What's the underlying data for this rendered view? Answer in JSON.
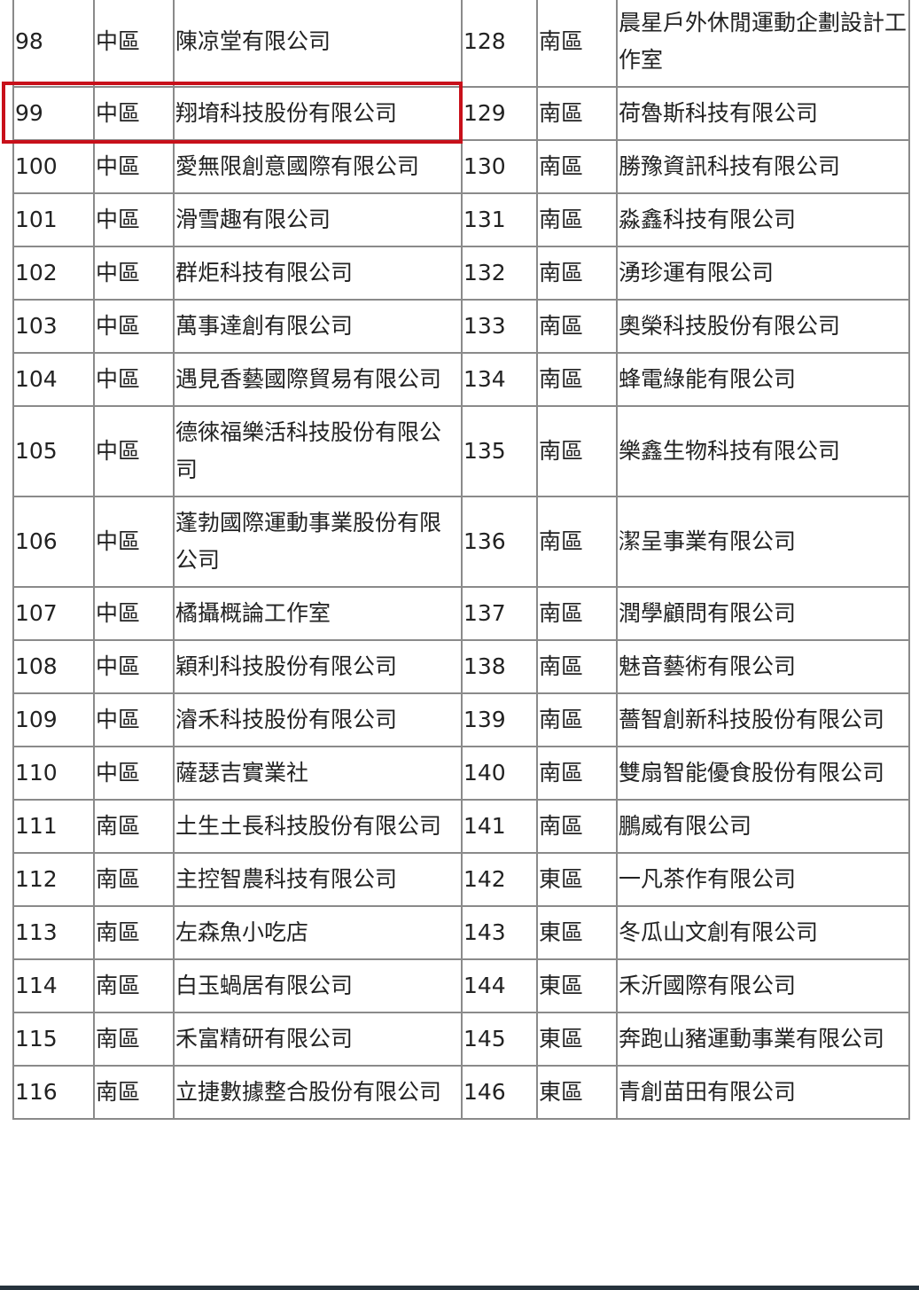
{
  "rows": [
    [
      "98",
      "中區",
      "陳凉堂有限公司",
      "128",
      "南區",
      "晨星戶外休閒運動企劃設計工作室"
    ],
    [
      "99",
      "中區",
      "翔堉科技股份有限公司",
      "129",
      "南區",
      "荷魯斯科技有限公司"
    ],
    [
      "100",
      "中區",
      "愛無限創意國際有限公司",
      "130",
      "南區",
      "勝豫資訊科技有限公司"
    ],
    [
      "101",
      "中區",
      "滑雪趣有限公司",
      "131",
      "南區",
      "淼鑫科技有限公司"
    ],
    [
      "102",
      "中區",
      "群炬科技有限公司",
      "132",
      "南區",
      "湧珍運有限公司"
    ],
    [
      "103",
      "中區",
      "萬事達創有限公司",
      "133",
      "南區",
      "奧榮科技股份有限公司"
    ],
    [
      "104",
      "中區",
      "遇見香藝國際貿易有限公司",
      "134",
      "南區",
      "蜂電綠能有限公司"
    ],
    [
      "105",
      "中區",
      "德徠福樂活科技股份有限公司",
      "135",
      "南區",
      "樂鑫生物科技有限公司"
    ],
    [
      "106",
      "中區",
      "蓬勃國際運動事業股份有限公司",
      "136",
      "南區",
      "潔呈事業有限公司"
    ],
    [
      "107",
      "中區",
      "橘攝概論工作室",
      "137",
      "南區",
      "潤學顧問有限公司"
    ],
    [
      "108",
      "中區",
      "穎利科技股份有限公司",
      "138",
      "南區",
      "魅音藝術有限公司"
    ],
    [
      "109",
      "中區",
      "濬禾科技股份有限公司",
      "139",
      "南區",
      "薔智創新科技股份有限公司"
    ],
    [
      "110",
      "中區",
      "薩瑟吉實業社",
      "140",
      "南區",
      "雙扇智能優食股份有限公司"
    ],
    [
      "111",
      "南區",
      "土生土長科技股份有限公司",
      "141",
      "南區",
      "鵬威有限公司"
    ],
    [
      "112",
      "南區",
      "主控智農科技有限公司",
      "142",
      "東區",
      "一凡茶作有限公司"
    ],
    [
      "113",
      "南區",
      "左森魚小吃店",
      "143",
      "東區",
      "冬瓜山文創有限公司"
    ],
    [
      "114",
      "南區",
      "白玉蝸居有限公司",
      "144",
      "東區",
      "禾沂國際有限公司"
    ],
    [
      "115",
      "南區",
      "禾富精研有限公司",
      "145",
      "東區",
      "奔跑山豬運動事業有限公司"
    ],
    [
      "116",
      "南區",
      "立捷數據整合股份有限公司",
      "146",
      "東區",
      "青創苗田有限公司"
    ]
  ],
  "highlighted_row": "99",
  "colors": {
    "highlight": "#c8101a",
    "border": "#8a8a8a"
  }
}
